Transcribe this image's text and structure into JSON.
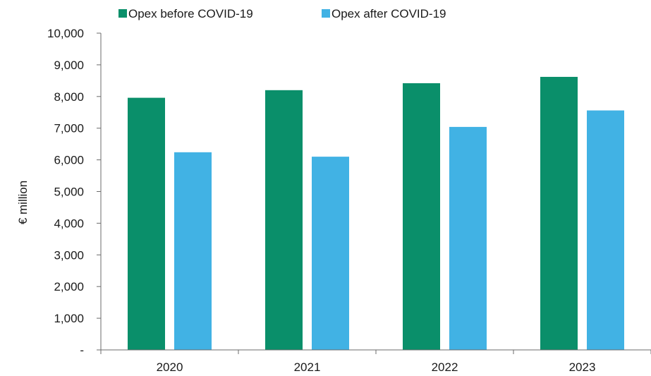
{
  "chart_data": {
    "type": "bar",
    "categories": [
      "2020",
      "2021",
      "2022",
      "2023"
    ],
    "series": [
      {
        "name": "Opex before COVID-19",
        "color": "#0a8f6a",
        "values": [
          7960,
          8200,
          8420,
          8620
        ]
      },
      {
        "name": "Opex after COVID-19",
        "color": "#41b2e4",
        "values": [
          6240,
          6100,
          7040,
          7560
        ]
      }
    ],
    "title": "",
    "xlabel": "",
    "ylabel": "€ million",
    "ylim": [
      0,
      10000
    ],
    "yticks": [
      0,
      1000,
      2000,
      3000,
      4000,
      5000,
      6000,
      7000,
      8000,
      9000,
      10000
    ],
    "ytick_labels": [
      "-",
      "1,000",
      "2,000",
      "3,000",
      "4,000",
      "5,000",
      "6,000",
      "7,000",
      "8,000",
      "9,000",
      "10,000"
    ],
    "grid": false,
    "legend": "top-left"
  }
}
